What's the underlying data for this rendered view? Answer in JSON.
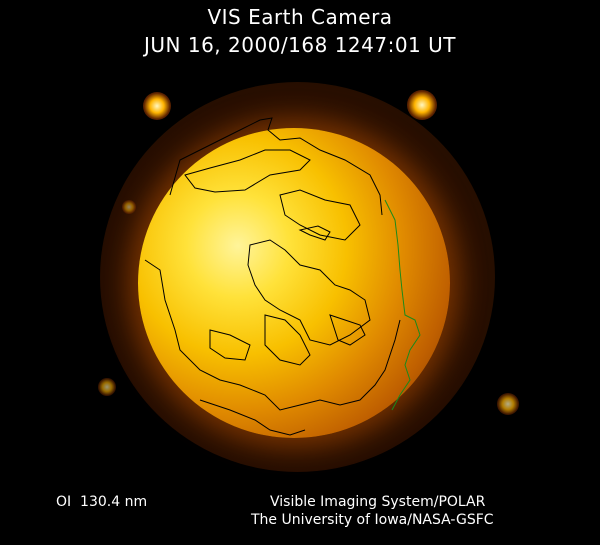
{
  "header": {
    "title": "VIS Earth Camera",
    "timestamp": "JUN 16, 2000/168 1247:01 UT"
  },
  "footer": {
    "wavelength": "OI  130.4 nm",
    "credit_line1": "Visible Imaging System/POLAR",
    "credit_line2": "The University of Iowa/NASA-GSFC"
  },
  "colors": {
    "background": "#000000",
    "text": "#ffffff",
    "disk_core": "#ffe23a",
    "disk_edge": "#8a3a00",
    "coastline": "#000000",
    "terminator_coast": "#1a8a1a"
  }
}
